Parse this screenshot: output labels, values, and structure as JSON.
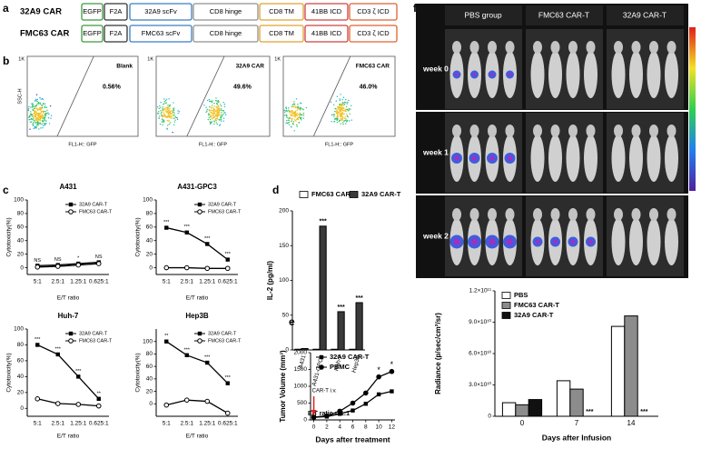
{
  "panel_labels": [
    "a",
    "b",
    "c",
    "d",
    "e",
    "f"
  ],
  "constructs": [
    {
      "name": "32A9 CAR",
      "parts": [
        "EGFP",
        "F2A",
        "32A9 scFv",
        "CD8 hinge",
        "CD8 TM",
        "41BB ICD",
        "CD3 ζ ICD"
      ]
    },
    {
      "name": "FMC63 CAR",
      "parts": [
        "EGFP",
        "F2A",
        "FMC63 scFv",
        "CD8 hinge",
        "CD8 TM",
        "41BB ICD",
        "CD3 ζ ICD"
      ]
    }
  ],
  "flow": {
    "y_label": "SSC-H",
    "x_label": "FL1-H:: GFP",
    "y_max_label": "1K",
    "plots": [
      {
        "name": "Blank",
        "percent": "0.56%"
      },
      {
        "name": "32A9 CAR",
        "percent": "49.6%"
      },
      {
        "name": "FMC63 CAR",
        "percent": "46.0%"
      }
    ]
  },
  "imaging": {
    "groups": [
      "PBS group",
      "FMC63 CAR-T",
      "32A9 CAR-T"
    ],
    "rows": [
      "week 0",
      "week 1",
      "week 2"
    ]
  },
  "chart_data": [
    {
      "type": "line",
      "title": "A431",
      "categories": [
        "5:1",
        "2.5:1",
        "1.25:1",
        "0.625:1"
      ],
      "x_label": "E/T ratio",
      "y_label": "Cytotoxicity(%)",
      "ylim": [
        -10,
        100
      ],
      "yticks": [
        0,
        20,
        40,
        60,
        80,
        100
      ],
      "legend": "upper right",
      "series": [
        {
          "name": "32A9 CAR-T",
          "color": "#000000",
          "marker": "square",
          "values": [
            3,
            4,
            6,
            8
          ]
        },
        {
          "name": "FMC63 CAR-T",
          "color": "#000000",
          "marker": "circle-open",
          "values": [
            1,
            2,
            4,
            6
          ]
        }
      ],
      "annotations": [
        "NS",
        "NS",
        "*",
        "NS"
      ]
    },
    {
      "type": "line",
      "title": "A431-GPC3",
      "categories": [
        "5:1",
        "2.5:1",
        "1.25:1",
        "0.625:1"
      ],
      "x_label": "E/T ratio",
      "y_label": "Cytotoxicity(%)",
      "ylim": [
        -10,
        100
      ],
      "yticks": [
        0,
        20,
        40,
        60,
        80,
        100
      ],
      "legend": "upper right",
      "series": [
        {
          "name": "32A9 CAR-T",
          "color": "#000000",
          "marker": "square",
          "values": [
            59,
            52,
            35,
            12
          ]
        },
        {
          "name": "FMC63 CAR-T",
          "color": "#000000",
          "marker": "circle-open",
          "values": [
            0,
            0,
            -1,
            -1
          ]
        }
      ],
      "annotations": [
        "***",
        "***",
        "***",
        "***"
      ]
    },
    {
      "type": "line",
      "title": "Huh-7",
      "categories": [
        "5:1",
        "2.5:1",
        "1.25:1",
        "0.625:1"
      ],
      "x_label": "E/T ratio",
      "y_label": "Cytotoxicity(%)",
      "ylim": [
        -10,
        100
      ],
      "yticks": [
        0,
        20,
        40,
        60,
        80,
        100
      ],
      "legend": "upper right",
      "series": [
        {
          "name": "32A9 CAR-T",
          "color": "#000000",
          "marker": "square",
          "values": [
            80,
            68,
            40,
            12
          ]
        },
        {
          "name": "FMC63 CAR-T",
          "color": "#000000",
          "marker": "circle-open",
          "values": [
            12,
            6,
            5,
            3
          ]
        }
      ],
      "annotations": [
        "***",
        "***",
        "***",
        "**"
      ]
    },
    {
      "type": "line",
      "title": "Hep3B",
      "categories": [
        "5:1",
        "2.5:1",
        "1.25:1",
        "0.625:1"
      ],
      "x_label": "E/T ratio",
      "y_label": "Cytotoxicity(%)",
      "ylim": [
        -20,
        120
      ],
      "yticks": [
        0,
        20,
        40,
        60,
        80,
        100
      ],
      "legend": "upper right",
      "series": [
        {
          "name": "32A9 CAR-T",
          "color": "#000000",
          "marker": "square",
          "values": [
            100,
            78,
            66,
            33
          ]
        },
        {
          "name": "FMC63 CAR-T",
          "color": "#000000",
          "marker": "circle-open",
          "values": [
            -2,
            6,
            4,
            -15
          ]
        }
      ],
      "annotations": [
        "**",
        "***",
        "***",
        "***"
      ]
    },
    {
      "type": "bar",
      "categories": [
        "A431",
        "A431-GPC3",
        "Huh-7",
        "Hep3B"
      ],
      "y_label": "IL-2 (pg/ml)",
      "note": "E/T ratio = 1:1",
      "ylim": [
        0,
        200
      ],
      "yticks": [
        0,
        50,
        100,
        150,
        200
      ],
      "legend": "upper left",
      "series": [
        {
          "name": "FMC63 CAR-T",
          "color": "#ffffff",
          "values": [
            1,
            1,
            1,
            1
          ]
        },
        {
          "name": "32A9 CAR-T",
          "color": "#3a3a3a",
          "values": [
            2,
            178,
            55,
            68
          ]
        }
      ],
      "annotations": [
        null,
        "***",
        "***",
        "***"
      ]
    },
    {
      "type": "line",
      "x": [
        0,
        2,
        4,
        6,
        8,
        10,
        12
      ],
      "x_label": "Days after treatment",
      "y_label": "Tumor Volume (mm³)",
      "xlim": [
        -0.5,
        12.5
      ],
      "xticks": [
        0,
        2,
        4,
        6,
        8,
        10,
        12
      ],
      "ylim": [
        0,
        2000
      ],
      "yticks": [
        0,
        500,
        1000,
        1500,
        2000
      ],
      "legend": "upper left",
      "series": [
        {
          "name": "32A9 CAR-T",
          "color": "#000000",
          "marker": "square",
          "values": [
            80,
            100,
            180,
            280,
            480,
            760,
            850
          ]
        },
        {
          "name": "PBMC",
          "color": "#000000",
          "marker": "circle",
          "values": [
            80,
            120,
            260,
            500,
            800,
            1280,
            1440
          ]
        }
      ],
      "annotations": [
        {
          "x": 10,
          "text": "*"
        },
        {
          "x": 12,
          "text": "*"
        }
      ],
      "arrow": {
        "x": 0,
        "text": "CAR-T i.v."
      }
    },
    {
      "type": "bar",
      "categories": [
        "0",
        "7",
        "14"
      ],
      "x_label": "Days after Infusion",
      "y_label": "Radiance (p/sec/cm²/sr)",
      "ylim": [
        0,
        120000000000
      ],
      "yticks": [
        0,
        {
          "value": 30000000000,
          "label": "3.0×10¹⁰"
        },
        {
          "value": 60000000000,
          "label": "6.0×10¹⁰"
        },
        {
          "value": 90000000000,
          "label": "9.0×10¹⁰"
        },
        {
          "value": 120000000000,
          "label": "1.2×10¹¹"
        }
      ],
      "legend": "upper left",
      "series": [
        {
          "name": "PBS",
          "color": "#ffffff",
          "values": [
            13000000000,
            34000000000,
            86000000000
          ]
        },
        {
          "name": "FMC63 CAR-T",
          "color": "#8c8c8c",
          "values": [
            11000000000,
            26000000000,
            96000000000
          ]
        },
        {
          "name": "32A9 CAR-T",
          "color": "#111111",
          "values": [
            16000000000,
            0,
            0
          ]
        }
      ],
      "annotations": [
        null,
        "***",
        "***"
      ]
    }
  ]
}
